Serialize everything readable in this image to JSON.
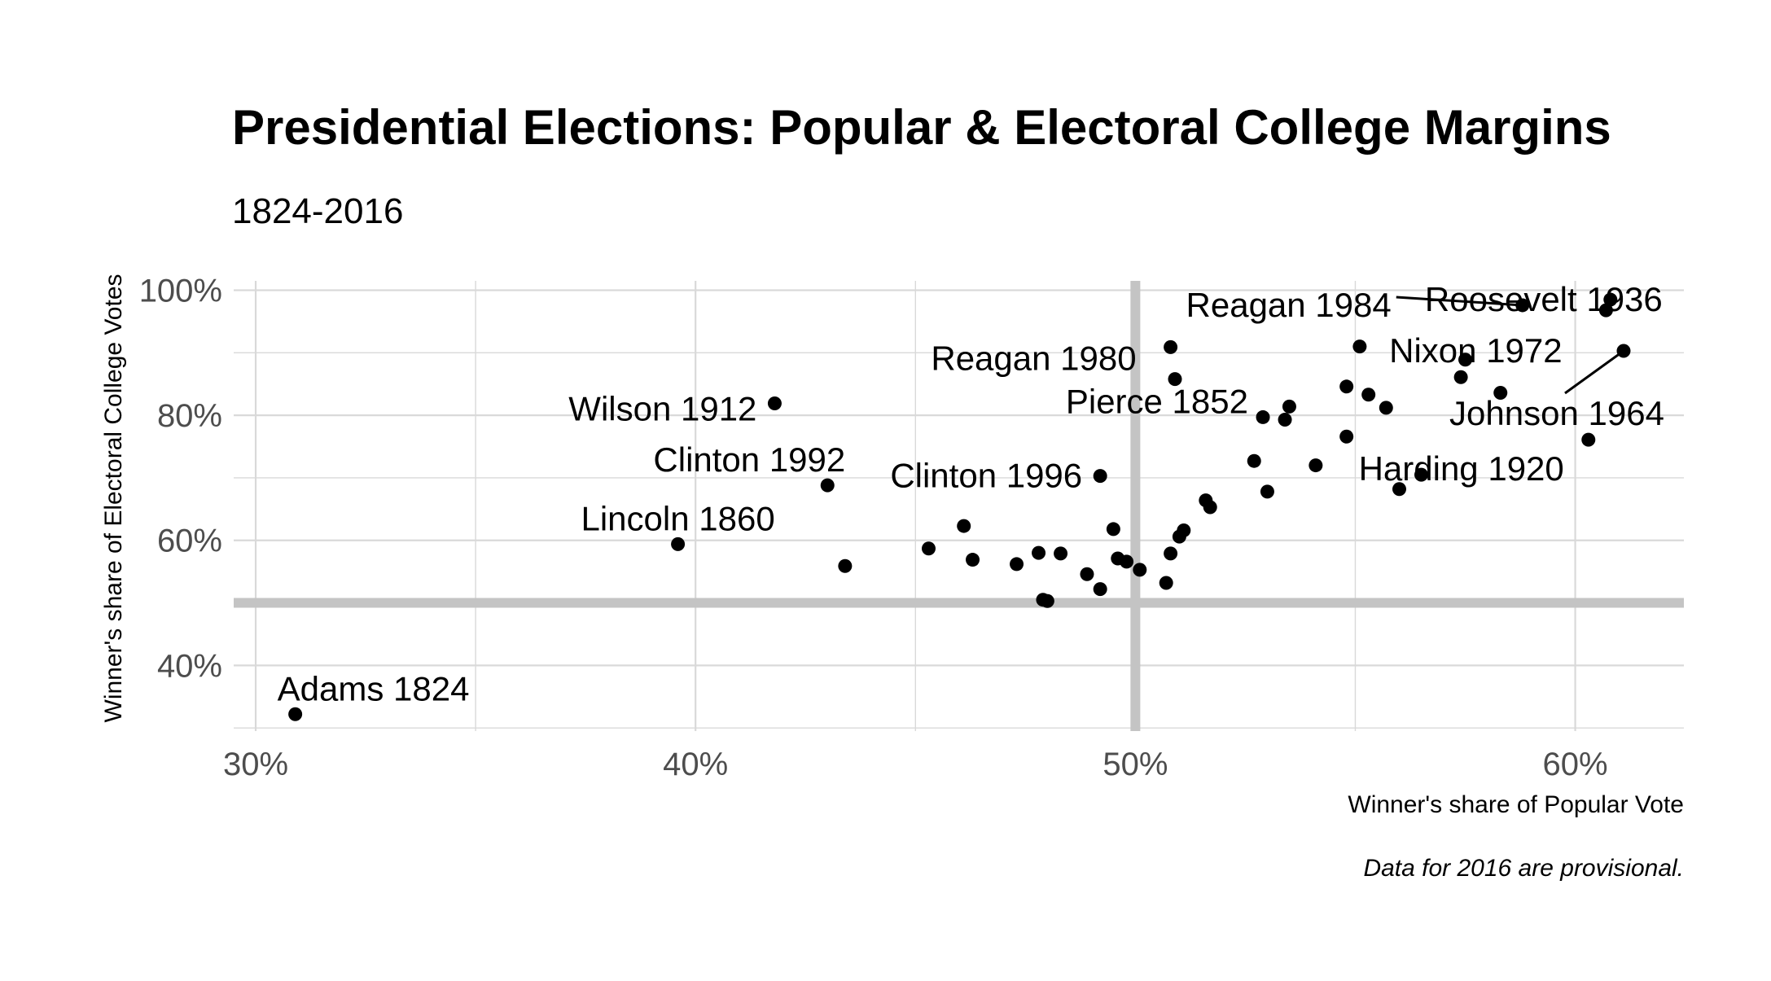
{
  "chart_data": {
    "type": "scatter",
    "title": "Presidential Elections: Popular & Electoral College Margins",
    "subtitle": "1824-2016",
    "xlabel": "Winner's share of Popular Vote",
    "ylabel": "Winner's share of Electoral College Votes",
    "caption": "Data for 2016 are provisional.",
    "xlim": [
      0.295,
      0.6247
    ],
    "ylim": [
      0.295,
      1.015
    ],
    "x_ticks": [
      0.3,
      0.4,
      0.5,
      0.6
    ],
    "x_tick_labels": [
      "30%",
      "40%",
      "50%",
      "60%"
    ],
    "y_ticks": [
      0.4,
      0.6,
      0.8,
      1.0
    ],
    "y_tick_labels": [
      "40%",
      "60%",
      "80%",
      "100%"
    ],
    "grid": true,
    "reference_lines": {
      "x": 0.5,
      "y": 0.5,
      "color": "#c4c4c4"
    },
    "colors": {
      "points": "#000000",
      "grid": "#d9d9d9",
      "reference": "#c4c4c4"
    },
    "points": [
      {
        "x": 0.309,
        "y": 0.322
      },
      {
        "x": 0.396,
        "y": 0.594
      },
      {
        "x": 0.418,
        "y": 0.819
      },
      {
        "x": 0.43,
        "y": 0.688
      },
      {
        "x": 0.434,
        "y": 0.559
      },
      {
        "x": 0.453,
        "y": 0.587
      },
      {
        "x": 0.461,
        "y": 0.623
      },
      {
        "x": 0.463,
        "y": 0.569
      },
      {
        "x": 0.473,
        "y": 0.562
      },
      {
        "x": 0.478,
        "y": 0.58
      },
      {
        "x": 0.479,
        "y": 0.505
      },
      {
        "x": 0.48,
        "y": 0.503
      },
      {
        "x": 0.483,
        "y": 0.579
      },
      {
        "x": 0.489,
        "y": 0.546
      },
      {
        "x": 0.492,
        "y": 0.522
      },
      {
        "x": 0.492,
        "y": 0.703
      },
      {
        "x": 0.495,
        "y": 0.618
      },
      {
        "x": 0.496,
        "y": 0.571
      },
      {
        "x": 0.498,
        "y": 0.566
      },
      {
        "x": 0.501,
        "y": 0.553
      },
      {
        "x": 0.507,
        "y": 0.532
      },
      {
        "x": 0.508,
        "y": 0.579
      },
      {
        "x": 0.508,
        "y": 0.909
      },
      {
        "x": 0.509,
        "y": 0.858
      },
      {
        "x": 0.51,
        "y": 0.606
      },
      {
        "x": 0.511,
        "y": 0.616
      },
      {
        "x": 0.516,
        "y": 0.664
      },
      {
        "x": 0.517,
        "y": 0.653
      },
      {
        "x": 0.527,
        "y": 0.727
      },
      {
        "x": 0.529,
        "y": 0.797
      },
      {
        "x": 0.53,
        "y": 0.678
      },
      {
        "x": 0.534,
        "y": 0.793
      },
      {
        "x": 0.535,
        "y": 0.814
      },
      {
        "x": 0.541,
        "y": 0.72
      },
      {
        "x": 0.548,
        "y": 0.766
      },
      {
        "x": 0.548,
        "y": 0.846
      },
      {
        "x": 0.551,
        "y": 0.91
      },
      {
        "x": 0.553,
        "y": 0.833
      },
      {
        "x": 0.557,
        "y": 0.812
      },
      {
        "x": 0.56,
        "y": 0.682
      },
      {
        "x": 0.565,
        "y": 0.705
      },
      {
        "x": 0.574,
        "y": 0.861
      },
      {
        "x": 0.575,
        "y": 0.889
      },
      {
        "x": 0.583,
        "y": 0.836
      },
      {
        "x": 0.588,
        "y": 0.976
      },
      {
        "x": 0.603,
        "y": 0.761
      },
      {
        "x": 0.607,
        "y": 0.968
      },
      {
        "x": 0.608,
        "y": 0.985
      },
      {
        "x": 0.611,
        "y": 0.903
      }
    ],
    "annotations": [
      {
        "text": "Adams 1824",
        "x": 0.309,
        "y": 0.322
      },
      {
        "text": "Lincoln 1860",
        "x": 0.396,
        "y": 0.594
      },
      {
        "text": "Wilson 1912",
        "x": 0.418,
        "y": 0.819
      },
      {
        "text": "Clinton 1992",
        "x": 0.43,
        "y": 0.688
      },
      {
        "text": "Clinton 1996",
        "x": 0.492,
        "y": 0.703
      },
      {
        "text": "Reagan 1980",
        "x": 0.508,
        "y": 0.909
      },
      {
        "text": "Pierce 1852",
        "x": 0.509,
        "y": 0.858
      },
      {
        "text": "Reagan 1984",
        "x": 0.588,
        "y": 0.976
      },
      {
        "text": "Roosevelt 1936",
        "x": 0.608,
        "y": 0.985
      },
      {
        "text": "Nixon 1972",
        "x": 0.607,
        "y": 0.968
      },
      {
        "text": "Johnson 1964",
        "x": 0.611,
        "y": 0.903
      },
      {
        "text": "Harding 1920",
        "x": 0.603,
        "y": 0.761
      }
    ]
  }
}
